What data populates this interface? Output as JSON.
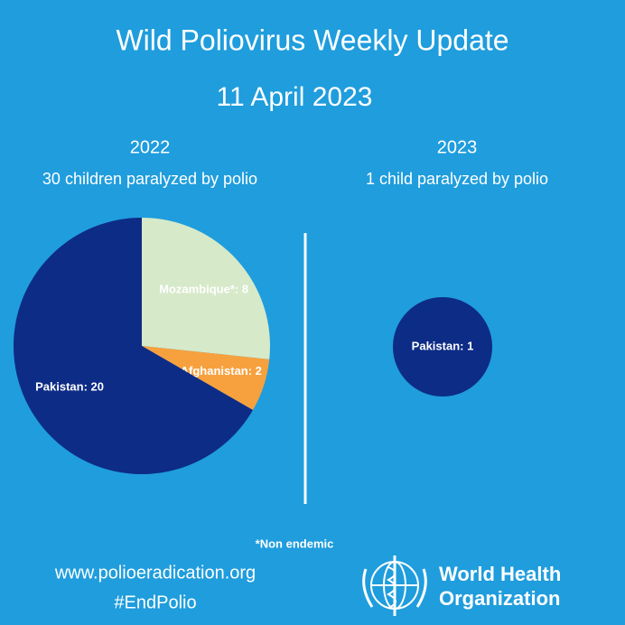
{
  "title": "Wild Poliovirus Weekly Update",
  "subtitle": "11 April 2023",
  "chart_data": [
    {
      "type": "pie",
      "title": "2022",
      "subtitle": "30 children paralyzed by polio",
      "values": [
        8,
        2,
        20
      ],
      "value_labels": [
        "Mozambique*: 8",
        "Afghanistan: 2",
        "Pakistan: 20"
      ],
      "colors": [
        "#d6e9c9",
        "#f7a13e",
        "#0d2c86"
      ]
    },
    {
      "type": "pie",
      "title": "2023",
      "subtitle": "1 child paralyzed by polio",
      "values": [
        1
      ],
      "value_labels": [
        "Pakistan: 1"
      ],
      "colors": [
        "#0d2c86"
      ]
    }
  ],
  "footnote": "*Non endemic",
  "website": "www.polioeradication.org",
  "hashtag": "#EndPolio",
  "logo_text": [
    "World Health",
    "Organization"
  ]
}
